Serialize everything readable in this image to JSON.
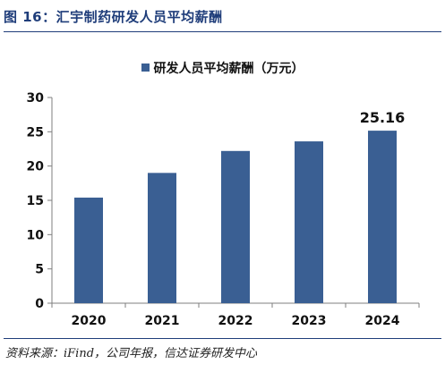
{
  "figure": {
    "title": "图 16：汇宇制药研发人员平均薪酬",
    "source": "资料来源：iFind，公司年报，信达证券研发中心"
  },
  "colors": {
    "bar": "#3a5f93",
    "title": "#1f3d7a",
    "axis": "#7f7f7f"
  },
  "chart_data": {
    "type": "bar",
    "title": "",
    "categories": [
      "2020",
      "2021",
      "2022",
      "2023",
      "2024"
    ],
    "series": [
      {
        "name": "研发人员平均薪酬（万元）",
        "values": [
          15.4,
          19.0,
          22.2,
          23.6,
          25.16
        ]
      }
    ],
    "data_labels": [
      "",
      "",
      "",
      "",
      "25.16"
    ],
    "xlabel": "",
    "ylabel": "",
    "ylim": [
      0,
      30
    ],
    "yticks": [
      "0",
      "5",
      "10",
      "15",
      "20",
      "25",
      "30"
    ],
    "grid": false,
    "legend": "top-center"
  }
}
